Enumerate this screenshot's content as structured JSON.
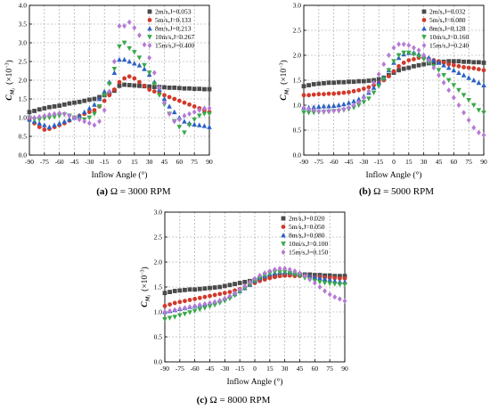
{
  "figure": {
    "colors": {
      "s1": "#4a4a4a",
      "s2": "#d13a2a",
      "s3": "#2b62c4",
      "s4": "#39a84a",
      "s5": "#b67ad6"
    },
    "marker_shapes": [
      "square",
      "circle",
      "triangle-up",
      "triangle-down",
      "diamond"
    ]
  },
  "chart_data": [
    {
      "type": "scatter",
      "caption_letter": "(a)",
      "caption_text": "Ω = 3000 RPM",
      "xlabel": "Inflow Angle (°)",
      "ylabel_main": "C",
      "ylabel_sub": "M",
      "ylabel_subsub": "l",
      "ylabel_unit": "(×10",
      "ylabel_exp": "−3",
      "ylabel_close": ")",
      "xlim": [
        -90,
        90
      ],
      "ylim": [
        0,
        4.0
      ],
      "xticks": [
        "-90",
        "-75",
        "-60",
        "-45",
        "-30",
        "-15",
        "0",
        "15",
        "30",
        "45",
        "60",
        "75",
        "90"
      ],
      "xtick_values": [
        -90,
        -75,
        -60,
        -45,
        -30,
        -15,
        0,
        15,
        30,
        45,
        60,
        75,
        90
      ],
      "yticks": [
        "0.0",
        "0.5",
        "1.0",
        "1.5",
        "2.0",
        "2.5",
        "3.0",
        "3.5",
        "4.0"
      ],
      "ytick_values": [
        0,
        0.5,
        1.0,
        1.5,
        2.0,
        2.5,
        3.0,
        3.5,
        4.0
      ],
      "grid": true,
      "legend_position": "top-right",
      "x": [
        -90,
        -85,
        -80,
        -75,
        -70,
        -65,
        -60,
        -55,
        -50,
        -45,
        -40,
        -35,
        -30,
        -25,
        -20,
        -15,
        -10,
        -5,
        0,
        5,
        10,
        15,
        20,
        25,
        30,
        35,
        40,
        45,
        50,
        55,
        60,
        65,
        70,
        75,
        80,
        85,
        90
      ],
      "series": [
        {
          "name": "2m/s,J=0.053",
          "values": [
            1.15,
            1.18,
            1.22,
            1.25,
            1.28,
            1.3,
            1.32,
            1.35,
            1.38,
            1.4,
            1.42,
            1.45,
            1.48,
            1.5,
            1.55,
            1.6,
            1.65,
            1.72,
            1.85,
            1.88,
            1.87,
            1.86,
            1.85,
            1.84,
            1.83,
            1.82,
            1.82,
            1.81,
            1.8,
            1.8,
            1.79,
            1.78,
            1.78,
            1.77,
            1.77,
            1.76,
            1.76
          ]
        },
        {
          "name": "5m/s,J=0.133",
          "values": [
            0.95,
            0.85,
            0.75,
            0.68,
            0.7,
            0.75,
            0.8,
            0.85,
            0.92,
            1.0,
            1.05,
            1.1,
            1.15,
            1.2,
            1.3,
            1.45,
            1.6,
            1.75,
            1.95,
            2.05,
            2.1,
            2.05,
            1.95,
            1.85,
            1.75,
            1.7,
            1.65,
            1.6,
            1.55,
            1.5,
            1.45,
            1.4,
            1.35,
            1.3,
            1.25,
            1.2,
            1.15
          ]
        },
        {
          "name": "8m/s,J=0.213",
          "values": [
            0.95,
            0.9,
            0.85,
            0.8,
            0.75,
            0.8,
            0.85,
            0.9,
            0.95,
            1.0,
            1.05,
            1.15,
            1.25,
            1.35,
            1.5,
            1.7,
            1.95,
            2.2,
            2.55,
            2.55,
            2.5,
            2.45,
            2.4,
            2.3,
            2.15,
            1.95,
            1.75,
            1.5,
            1.3,
            1.15,
            1.0,
            0.9,
            0.85,
            0.82,
            0.8,
            0.78,
            0.75
          ]
        },
        {
          "name": "10m/s,J=0.267",
          "values": [
            1.0,
            0.95,
            0.95,
            0.98,
            1.0,
            1.02,
            1.05,
            1.08,
            1.05,
            1.0,
            0.95,
            0.95,
            1.0,
            1.1,
            1.3,
            1.6,
            1.9,
            2.3,
            2.9,
            3.0,
            2.85,
            2.75,
            2.6,
            2.4,
            2.2,
            1.9,
            1.6,
            1.35,
            1.1,
            0.9,
            0.75,
            0.6,
            0.8,
            0.95,
            1.05,
            1.1,
            1.1
          ]
        },
        {
          "name": "15m/s,J=0.400",
          "values": [
            1.0,
            1.0,
            1.02,
            1.05,
            1.08,
            1.1,
            1.12,
            1.1,
            1.05,
            1.0,
            0.95,
            0.9,
            0.85,
            0.8,
            0.9,
            1.2,
            1.7,
            2.5,
            3.45,
            3.45,
            3.55,
            3.4,
            3.2,
            2.95,
            2.6,
            2.2,
            1.8,
            1.4,
            1.1,
            0.9,
            0.95,
            1.05,
            1.1,
            1.15,
            1.2,
            1.25,
            1.25
          ]
        }
      ]
    },
    {
      "type": "scatter",
      "caption_letter": "(b)",
      "caption_text": "Ω = 5000 RPM",
      "xlabel": "Inflow Angle (°)",
      "ylabel_main": "C",
      "ylabel_sub": "M",
      "ylabel_subsub": "l",
      "ylabel_unit": "(×10",
      "ylabel_exp": "−3",
      "ylabel_close": ")",
      "xlim": [
        -90,
        90
      ],
      "ylim": [
        0,
        3.0
      ],
      "xticks": [
        "-90",
        "-75",
        "-60",
        "-45",
        "-30",
        "-15",
        "0",
        "15",
        "30",
        "45",
        "60",
        "75",
        "90"
      ],
      "xtick_values": [
        -90,
        -75,
        -60,
        -45,
        -30,
        -15,
        0,
        15,
        30,
        45,
        60,
        75,
        90
      ],
      "yticks": [
        "0.0",
        "0.5",
        "1.0",
        "1.5",
        "2.0",
        "2.5",
        "3.0"
      ],
      "ytick_values": [
        0,
        0.5,
        1.0,
        1.5,
        2.0,
        2.5,
        3.0
      ],
      "grid": true,
      "legend_position": "top-right",
      "x": [
        -90,
        -85,
        -80,
        -75,
        -70,
        -65,
        -60,
        -55,
        -50,
        -45,
        -40,
        -35,
        -30,
        -25,
        -20,
        -15,
        -10,
        -5,
        0,
        5,
        10,
        15,
        20,
        25,
        30,
        35,
        40,
        45,
        50,
        55,
        60,
        65,
        70,
        75,
        80,
        85,
        90
      ],
      "series": [
        {
          "name": "2m/s,J=0.032",
          "values": [
            1.38,
            1.4,
            1.42,
            1.43,
            1.44,
            1.45,
            1.45,
            1.46,
            1.46,
            1.47,
            1.47,
            1.48,
            1.48,
            1.49,
            1.5,
            1.52,
            1.55,
            1.6,
            1.65,
            1.7,
            1.73,
            1.75,
            1.78,
            1.8,
            1.82,
            1.84,
            1.85,
            1.86,
            1.87,
            1.88,
            1.88,
            1.88,
            1.87,
            1.87,
            1.86,
            1.86,
            1.85
          ]
        },
        {
          "name": "5m/s,J=0.080",
          "values": [
            1.2,
            1.2,
            1.21,
            1.22,
            1.22,
            1.23,
            1.23,
            1.24,
            1.25,
            1.26,
            1.28,
            1.3,
            1.33,
            1.36,
            1.4,
            1.45,
            1.5,
            1.58,
            1.68,
            1.78,
            1.85,
            1.9,
            1.92,
            1.95,
            1.95,
            1.93,
            1.9,
            1.88,
            1.85,
            1.82,
            1.8,
            1.78,
            1.76,
            1.75,
            1.74,
            1.72,
            1.7
          ]
        },
        {
          "name": "8m/s,J=0.128",
          "values": [
            0.95,
            0.95,
            0.96,
            0.97,
            0.98,
            0.98,
            0.99,
            1.0,
            1.02,
            1.05,
            1.08,
            1.12,
            1.18,
            1.25,
            1.35,
            1.45,
            1.55,
            1.7,
            1.85,
            1.95,
            2.02,
            2.05,
            2.05,
            2.02,
            1.98,
            1.95,
            1.9,
            1.85,
            1.8,
            1.75,
            1.7,
            1.65,
            1.6,
            1.55,
            1.5,
            1.45,
            1.4
          ]
        },
        {
          "name": "10m/s,J=0.160",
          "values": [
            0.85,
            0.85,
            0.85,
            0.86,
            0.86,
            0.87,
            0.88,
            0.88,
            0.9,
            0.92,
            0.95,
            1.0,
            1.06,
            1.13,
            1.25,
            1.38,
            1.52,
            1.7,
            1.88,
            2.0,
            2.05,
            2.05,
            2.02,
            1.98,
            1.92,
            1.85,
            1.78,
            1.7,
            1.6,
            1.5,
            1.4,
            1.3,
            1.2,
            1.1,
            1.0,
            0.9,
            0.85
          ]
        },
        {
          "name": "15m/s,J=0.240",
          "values": [
            0.95,
            0.92,
            0.9,
            0.88,
            0.88,
            0.88,
            0.89,
            0.9,
            0.92,
            0.95,
            1.0,
            1.06,
            1.15,
            1.28,
            1.45,
            1.62,
            1.82,
            2.0,
            2.15,
            2.22,
            2.22,
            2.2,
            2.15,
            2.1,
            2.0,
            1.9,
            1.75,
            1.6,
            1.45,
            1.3,
            1.15,
            1.0,
            0.85,
            0.7,
            0.55,
            0.45,
            0.4
          ]
        }
      ]
    },
    {
      "type": "scatter",
      "caption_letter": "(c)",
      "caption_text": "Ω = 8000 RPM",
      "xlabel": "Inflow Angle (°)",
      "ylabel_main": "C",
      "ylabel_sub": "M",
      "ylabel_subsub": "l",
      "ylabel_unit": "(×10",
      "ylabel_exp": "−3",
      "ylabel_close": ")",
      "xlim": [
        -90,
        90
      ],
      "ylim": [
        0,
        3.0
      ],
      "xticks": [
        "-90",
        "-75",
        "-60",
        "-45",
        "-30",
        "-15",
        "0",
        "15",
        "30",
        "45",
        "60",
        "75",
        "90"
      ],
      "xtick_values": [
        -90,
        -75,
        -60,
        -45,
        -30,
        -15,
        0,
        15,
        30,
        45,
        60,
        75,
        90
      ],
      "yticks": [
        "0.0",
        "0.5",
        "1.0",
        "1.5",
        "2.0",
        "2.5",
        "3.0"
      ],
      "ytick_values": [
        0,
        0.5,
        1.0,
        1.5,
        2.0,
        2.5,
        3.0
      ],
      "grid": true,
      "legend_position": "top-right",
      "x": [
        -90,
        -85,
        -80,
        -75,
        -70,
        -65,
        -60,
        -55,
        -50,
        -45,
        -40,
        -35,
        -30,
        -25,
        -20,
        -15,
        -10,
        -5,
        0,
        5,
        10,
        15,
        20,
        25,
        30,
        35,
        40,
        45,
        50,
        55,
        60,
        65,
        70,
        75,
        80,
        85,
        90
      ],
      "series": [
        {
          "name": "2m/s,J=0.020",
          "values": [
            1.38,
            1.4,
            1.42,
            1.43,
            1.44,
            1.45,
            1.45,
            1.46,
            1.47,
            1.48,
            1.49,
            1.5,
            1.52,
            1.54,
            1.56,
            1.58,
            1.6,
            1.62,
            1.64,
            1.66,
            1.68,
            1.7,
            1.72,
            1.73,
            1.74,
            1.75,
            1.75,
            1.75,
            1.75,
            1.75,
            1.74,
            1.74,
            1.73,
            1.73,
            1.72,
            1.72,
            1.72
          ]
        },
        {
          "name": "5m/s,J=0.050",
          "values": [
            1.12,
            1.15,
            1.18,
            1.2,
            1.22,
            1.24,
            1.26,
            1.28,
            1.3,
            1.32,
            1.34,
            1.36,
            1.38,
            1.4,
            1.43,
            1.46,
            1.5,
            1.54,
            1.58,
            1.62,
            1.65,
            1.68,
            1.7,
            1.72,
            1.73,
            1.73,
            1.72,
            1.72,
            1.72,
            1.71,
            1.7,
            1.7,
            1.69,
            1.68,
            1.68,
            1.67,
            1.67
          ]
        },
        {
          "name": "8m/s,J=0.080",
          "values": [
            1.0,
            1.02,
            1.04,
            1.06,
            1.08,
            1.1,
            1.12,
            1.14,
            1.16,
            1.18,
            1.2,
            1.23,
            1.27,
            1.31,
            1.36,
            1.42,
            1.48,
            1.55,
            1.62,
            1.68,
            1.72,
            1.76,
            1.78,
            1.8,
            1.8,
            1.8,
            1.78,
            1.76,
            1.74,
            1.72,
            1.7,
            1.68,
            1.66,
            1.64,
            1.62,
            1.6,
            1.6
          ]
        },
        {
          "name": "10m/s,J=0.100",
          "values": [
            0.85,
            0.88,
            0.9,
            0.93,
            0.96,
            0.99,
            1.02,
            1.05,
            1.08,
            1.11,
            1.14,
            1.18,
            1.22,
            1.27,
            1.33,
            1.4,
            1.47,
            1.55,
            1.62,
            1.68,
            1.73,
            1.77,
            1.8,
            1.8,
            1.8,
            1.78,
            1.75,
            1.72,
            1.68,
            1.65,
            1.62,
            1.6,
            1.58,
            1.57,
            1.56,
            1.55,
            1.55
          ]
        },
        {
          "name": "15m/s,J=0.150",
          "values": [
            1.0,
            1.02,
            1.04,
            1.06,
            1.08,
            1.1,
            1.12,
            1.14,
            1.16,
            1.18,
            1.2,
            1.23,
            1.27,
            1.32,
            1.38,
            1.45,
            1.52,
            1.6,
            1.67,
            1.73,
            1.78,
            1.82,
            1.85,
            1.87,
            1.87,
            1.85,
            1.82,
            1.78,
            1.72,
            1.65,
            1.58,
            1.5,
            1.42,
            1.35,
            1.3,
            1.26,
            1.22
          ]
        }
      ]
    }
  ]
}
